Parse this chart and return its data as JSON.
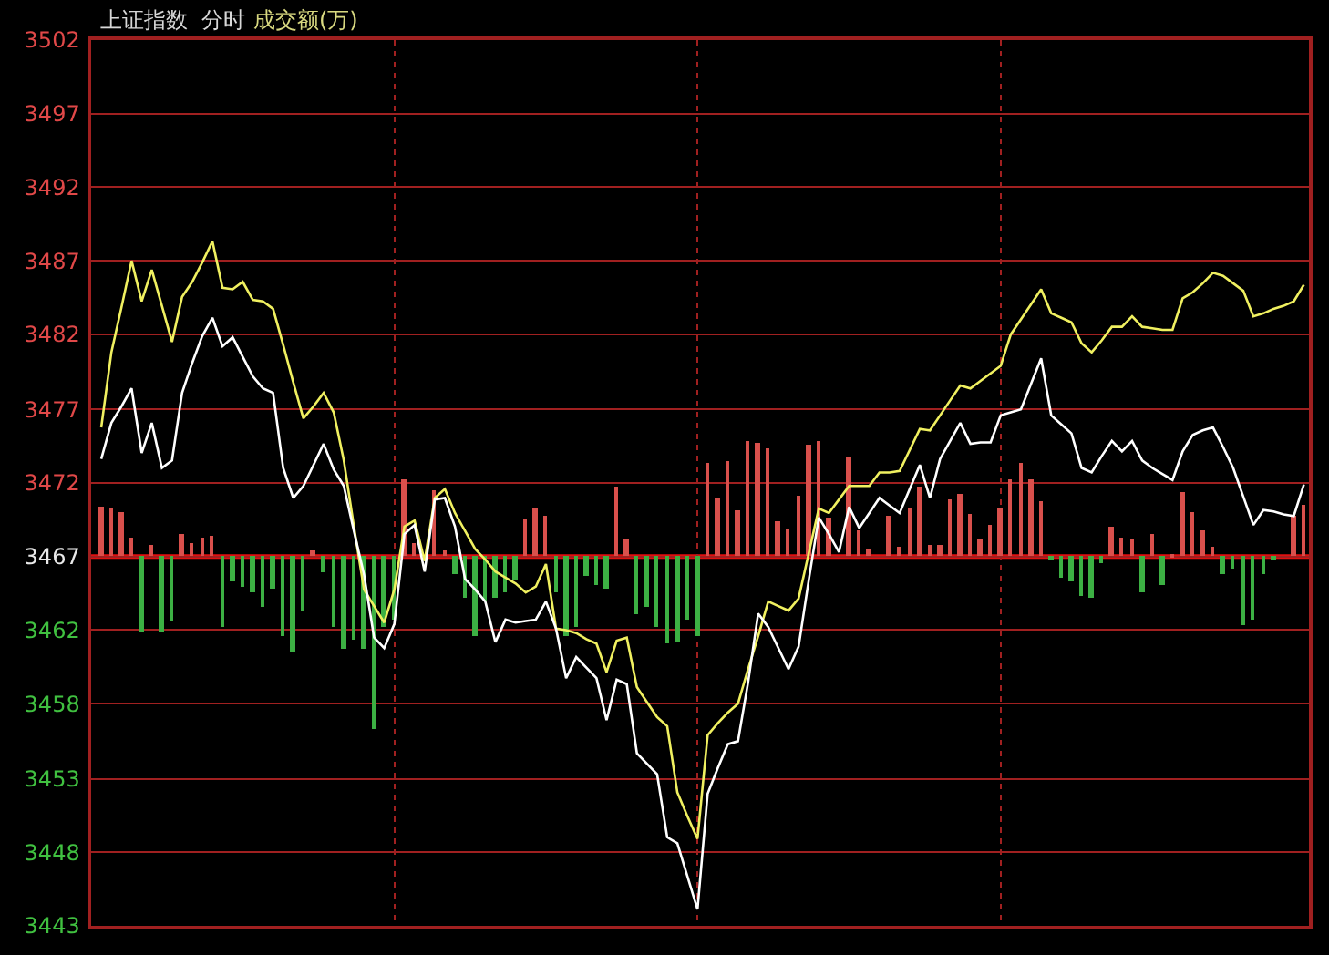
{
  "chart_data": {
    "type": "line",
    "title": "上证指数  分时",
    "annotations": [
      "成交额(万)"
    ],
    "categories": [
      null,
      null,
      null,
      null,
      null,
      null,
      null,
      null,
      null,
      null,
      null,
      null,
      null,
      null,
      null,
      null,
      null,
      null,
      null,
      null,
      null,
      null,
      null,
      null,
      null,
      null,
      null,
      null,
      null,
      null,
      null,
      null,
      null,
      null,
      null,
      null,
      null,
      null,
      null,
      null,
      null,
      null,
      null,
      null,
      null,
      null,
      null,
      null,
      null,
      null,
      null,
      null,
      null,
      null,
      null,
      null,
      null,
      null,
      null,
      null,
      null,
      null,
      null,
      null,
      null,
      null,
      null,
      null,
      null,
      null,
      null,
      null,
      null,
      null,
      null,
      null,
      null,
      null,
      null,
      null,
      null,
      null,
      null,
      null,
      null,
      null,
      null,
      null,
      null,
      null,
      null,
      null,
      null,
      null,
      null,
      null,
      null,
      null,
      null,
      null,
      null,
      null,
      null,
      null,
      null,
      null,
      null,
      null,
      null,
      null,
      null,
      null,
      null,
      null,
      null,
      null,
      null,
      null,
      null,
      null
    ],
    "tick_labels": "y",
    "grid": true,
    "marker": "none",
    "line_style": "solid",
    "ylim": [
      3442.8,
      3501.8
    ],
    "yticks": [
      {
        "value": 3442.8,
        "label": "3443"
      },
      {
        "value": 3447.7,
        "label": "3448"
      },
      {
        "value": 3452.6,
        "label": "3453"
      },
      {
        "value": 3457.6,
        "label": "3458"
      },
      {
        "value": 3462.5,
        "label": "3462"
      },
      {
        "value": 3467.4,
        "label": "3467"
      },
      {
        "value": 3472.3,
        "label": "3472"
      },
      {
        "value": 3477.2,
        "label": "3477"
      },
      {
        "value": 3482.2,
        "label": "3482"
      },
      {
        "value": 3487.1,
        "label": "3487"
      },
      {
        "value": 3492.0,
        "label": "3492"
      },
      {
        "value": 3496.9,
        "label": "3497"
      },
      {
        "value": 3501.8,
        "label": "3502"
      }
    ],
    "ref_lines": [
      {
        "axis": "y",
        "value": 3467.4,
        "color": "#e01010"
      }
    ],
    "series": [
      {
        "type": "bar",
        "values": [
          3.3,
          3.2,
          3.0,
          1.2,
          -5.0,
          0.8,
          -5.0,
          -4.3,
          1.5,
          0.9,
          1.2,
          1.4,
          -4.7,
          -1.7,
          -2.0,
          -2.4,
          -3.3,
          -2.1,
          -5.3,
          -6.4,
          -3.6,
          0.4,
          -1.1,
          -4.7,
          -6.1,
          -5.5,
          -6.1,
          -11.5,
          -4.7,
          -4.2,
          5.1,
          0.9,
          null,
          4.4,
          0.4,
          -1.2,
          -2.7,
          -5.3,
          -3.0,
          -2.8,
          -2.4,
          -1.5,
          2.5,
          3.2,
          2.7,
          -2.4,
          -5.3,
          -4.7,
          -1.3,
          -1.9,
          -2.1,
          4.6,
          1.1,
          -3.9,
          -3.3,
          -4.7,
          -5.8,
          -5.7,
          -4.2,
          -5.3,
          6.2,
          3.9,
          6.4,
          3.1,
          7.7,
          7.6,
          7.2,
          2.3,
          1.9,
          4.0,
          7.4,
          7.7,
          2.6,
          null,
          6.6,
          1.8,
          0.5,
          null,
          2.7,
          0.6,
          3.2,
          4.6,
          0.8,
          0.8,
          3.8,
          4.2,
          2.8,
          1.1,
          2.1,
          3.2,
          5.2,
          6.2,
          5.1,
          3.7,
          -0.2,
          -1.4,
          -1.7,
          -2.6,
          -2.7,
          -0.4,
          2.0,
          1.3,
          1.1,
          -2.4,
          1.5,
          -1.9,
          0.2,
          4.3,
          3.0,
          1.7,
          0.7,
          -1.2,
          -0.8,
          -4.6,
          -4.2,
          -1.2,
          -0.2,
          null,
          2.7,
          3.4
        ],
        "colors": [
          "#d9504c",
          "#d9504c",
          "#d9504c",
          "#d9504c",
          "#3cb043",
          "#d9504c",
          "#3cb043",
          "#3cb043",
          "#d9504c",
          "#d9504c",
          "#d9504c",
          "#d9504c",
          "#3cb043",
          "#3cb043",
          "#3cb043",
          "#3cb043",
          "#3cb043",
          "#3cb043",
          "#3cb043",
          "#3cb043",
          "#3cb043",
          "#d9504c",
          "#3cb043",
          "#3cb043",
          "#3cb043",
          "#3cb043",
          "#3cb043",
          "#3cb043",
          "#3cb043",
          "#3cb043",
          "#d9504c",
          "#d9504c",
          null,
          "#d9504c",
          "#d9504c",
          "#3cb043",
          "#3cb043",
          "#3cb043",
          "#3cb043",
          "#3cb043",
          "#3cb043",
          "#3cb043",
          "#d9504c",
          "#d9504c",
          "#d9504c",
          "#3cb043",
          "#3cb043",
          "#3cb043",
          "#3cb043",
          "#3cb043",
          "#3cb043",
          "#d9504c",
          "#d9504c",
          "#3cb043",
          "#3cb043",
          "#3cb043",
          "#3cb043",
          "#3cb043",
          "#3cb043",
          "#3cb043",
          "#d9504c",
          "#d9504c",
          "#d9504c",
          "#d9504c",
          "#d9504c",
          "#d9504c",
          "#d9504c",
          "#d9504c",
          "#d9504c",
          "#d9504c",
          "#d9504c",
          "#d9504c",
          "#d9504c",
          null,
          "#d9504c",
          "#d9504c",
          "#d9504c",
          null,
          "#d9504c",
          "#d9504c",
          "#d9504c",
          "#d9504c",
          "#d9504c",
          "#d9504c",
          "#d9504c",
          "#d9504c",
          "#d9504c",
          "#d9504c",
          "#d9504c",
          "#d9504c",
          "#d9504c",
          "#d9504c",
          "#d9504c",
          "#d9504c",
          "#3cb043",
          "#3cb043",
          "#3cb043",
          "#3cb043",
          "#3cb043",
          "#3cb043",
          "#d9504c",
          "#d9504c",
          "#d9504c",
          "#3cb043",
          "#d9504c",
          "#3cb043",
          "#d9504c",
          "#d9504c",
          "#d9504c",
          "#d9504c",
          "#d9504c",
          "#3cb043",
          "#3cb043",
          "#3cb043",
          "#3cb043",
          "#3cb043",
          "#3cb043",
          null,
          "#d9504c",
          "#d9504c"
        ],
        "base": [
          3467.4,
          3467.4,
          3467.4,
          3467.4,
          3467.4,
          3467.4,
          3467.4,
          3467.4,
          3467.4,
          3467.4,
          3467.4,
          3467.4,
          3467.4,
          3467.4,
          3467.4,
          3467.4,
          3467.4,
          3467.4,
          3467.4,
          3467.4,
          3467.4,
          3467.4,
          3467.4,
          3467.4,
          3467.4,
          3467.4,
          3467.4,
          3467.4,
          3467.4,
          3467.4,
          3467.4,
          3467.4,
          null,
          3467.4,
          3467.4,
          3467.4,
          3467.4,
          3467.4,
          3467.4,
          3467.4,
          3467.4,
          3467.4,
          3467.4,
          3467.4,
          3467.4,
          3467.4,
          3467.4,
          3467.4,
          3467.4,
          3467.4,
          3467.4,
          3467.4,
          3467.4,
          3467.4,
          3467.4,
          3467.4,
          3467.4,
          3467.4,
          3467.4,
          3467.4,
          3467.4,
          3467.4,
          3467.4,
          3467.4,
          3467.4,
          3467.4,
          3467.4,
          3467.4,
          3467.4,
          3467.4,
          3467.4,
          3467.4,
          3467.4,
          null,
          3467.4,
          3467.4,
          3467.4,
          null,
          3467.4,
          3467.4,
          3467.4,
          3467.4,
          3467.4,
          3467.4,
          3467.4,
          3467.4,
          3467.4,
          3467.4,
          3467.4,
          3467.4,
          3467.4,
          3467.4,
          3467.4,
          3467.4,
          3467.4,
          3467.4,
          3467.4,
          3467.4,
          3467.4,
          3467.4,
          3467.4,
          3467.4,
          3467.4,
          3467.4,
          3467.4,
          3467.4,
          3467.4,
          3467.4,
          3467.4,
          3467.4,
          3467.4,
          3467.4,
          3467.4,
          3467.4,
          3467.4,
          3467.4,
          3467.4,
          null,
          3467.4,
          3467.4
        ]
      },
      {
        "color": "#f0f060",
        "values": [
          3476.0,
          3481.0,
          3484.0,
          3487.1,
          3484.4,
          3486.5,
          3484.1,
          3481.7,
          3484.7,
          3485.7,
          3487.0,
          3488.4,
          3485.3,
          3485.2,
          3485.7,
          3484.5,
          3484.4,
          3483.9,
          3481.5,
          3479.0,
          3476.6,
          3477.4,
          3478.3,
          3477.0,
          3473.8,
          3469.4,
          3465.2,
          3464.1,
          3463.0,
          3465.2,
          3469.4,
          3469.8,
          3467.1,
          3471.3,
          3471.9,
          3470.3,
          3469.1,
          3467.9,
          3467.2,
          3466.4,
          3466.0,
          3465.6,
          3465.0,
          3465.4,
          3466.9,
          3462.6,
          3462.5,
          3462.3,
          3461.9,
          3461.6,
          3459.7,
          3461.8,
          3462.0,
          3458.7,
          3457.7,
          3456.7,
          3456.1,
          3451.7,
          3450.1,
          3448.6,
          3455.5,
          3456.3,
          3457.0,
          3457.6,
          3459.9,
          3462.1,
          3464.4,
          3464.1,
          3463.8,
          3464.6,
          3467.6,
          3470.6,
          3470.3,
          3471.2,
          3472.1,
          3472.1,
          3472.1,
          3473.0,
          3473.0,
          3473.1,
          3474.5,
          3475.9,
          3475.8,
          3476.8,
          3477.8,
          3478.8,
          3478.6,
          3479.1,
          3479.6,
          3480.1,
          3482.2,
          3483.2,
          3484.2,
          3485.2,
          3483.6,
          3483.3,
          3483.0,
          3481.6,
          3481.0,
          3481.8,
          3482.7,
          3482.7,
          3483.4,
          3482.7,
          3482.6,
          3482.5,
          3482.5,
          3484.6,
          3485.0,
          3485.6,
          3486.3,
          3486.1,
          3485.6,
          3485.1,
          3483.4,
          3483.6,
          3483.9,
          3484.1,
          3484.4,
          3485.5
        ]
      },
      {
        "color": "#ffffff",
        "values": [
          3473.9,
          3476.3,
          3477.4,
          3478.6,
          3474.3,
          3476.3,
          3473.3,
          3473.8,
          3478.3,
          3480.3,
          3482.1,
          3483.3,
          3481.4,
          3482.0,
          3480.7,
          3479.4,
          3478.6,
          3478.3,
          3473.3,
          3471.3,
          3472.1,
          3473.5,
          3474.9,
          3473.2,
          3472.1,
          3469.1,
          3466.2,
          3462.0,
          3461.3,
          3462.9,
          3468.9,
          3469.5,
          3466.4,
          3471.2,
          3471.3,
          3469.4,
          3465.9,
          3465.2,
          3464.4,
          3461.7,
          3463.2,
          3463.0,
          3463.1,
          3463.2,
          3464.4,
          3462.6,
          3459.3,
          3460.7,
          3460.0,
          3459.3,
          3456.5,
          3459.2,
          3458.9,
          3454.3,
          3453.6,
          3452.9,
          3448.7,
          3448.3,
          3446.1,
          3443.9,
          3451.6,
          3453.3,
          3454.9,
          3455.1,
          3459.0,
          3463.6,
          3462.7,
          3461.3,
          3459.9,
          3461.4,
          3465.8,
          3470.0,
          3468.9,
          3467.7,
          3470.7,
          3469.3,
          3470.3,
          3471.3,
          3470.8,
          3470.3,
          3471.9,
          3473.5,
          3471.3,
          3473.9,
          3475.1,
          3476.3,
          3474.9,
          3475.0,
          3475.0,
          3476.8,
          3477.0,
          3477.2,
          3478.9,
          3480.6,
          3476.8,
          3476.2,
          3475.6,
          3473.3,
          3473.0,
          3474.1,
          3475.1,
          3474.4,
          3475.1,
          3473.8,
          3473.3,
          3472.9,
          3472.5,
          3474.4,
          3475.5,
          3475.8,
          3476.0,
          3474.7,
          3473.3,
          3471.4,
          3469.5,
          3470.5,
          3470.4,
          3470.2,
          3470.1,
          3472.2
        ]
      }
    ]
  }
}
